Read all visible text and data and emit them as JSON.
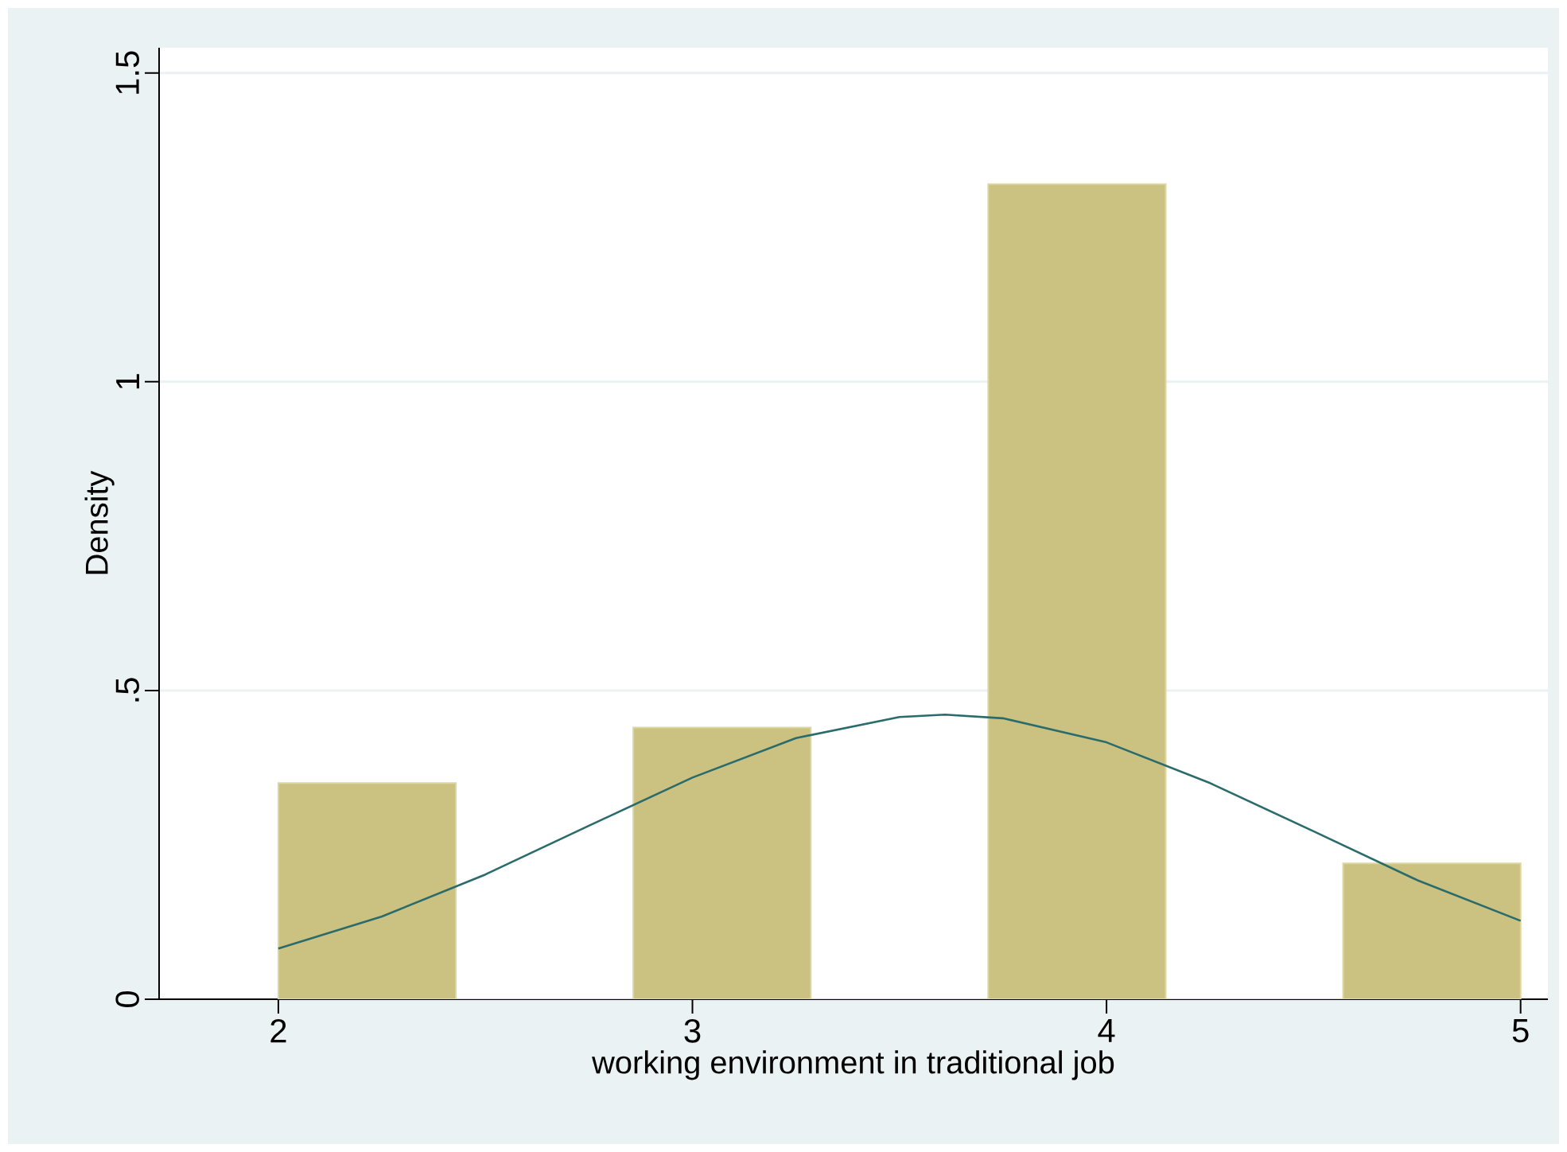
{
  "chart_data": {
    "type": "histogram",
    "xlabel": "working environment in traditional job",
    "ylabel": "Density",
    "bins": [
      2,
      2.4286,
      2.8571,
      3.2857,
      3.7143,
      4.1429,
      4.5714,
      5
    ],
    "values": [
      0.35,
      0,
      0.44,
      0,
      1.32,
      0,
      0.22
    ],
    "color": "#cbc282",
    "series": [
      {
        "type": "line",
        "color": "#2a6b6b",
        "x": [
          2,
          2.25,
          2.5,
          2.75,
          3,
          3.25,
          3.5,
          3.61,
          3.75,
          4,
          4.25,
          4.5,
          4.75,
          5
        ],
        "values": [
          0.082,
          0.134,
          0.202,
          0.281,
          0.359,
          0.423,
          0.457,
          0.461,
          0.455,
          0.416,
          0.35,
          0.272,
          0.193,
          0.127
        ]
      }
    ],
    "xlim": [
      1.712,
      5.066
    ],
    "ylim": [
      0,
      1.541
    ],
    "xticks": [
      2,
      3,
      4,
      5
    ],
    "yticks": [
      0,
      {
        "value": 0.5,
        "label": ".5"
      },
      1,
      1.5
    ],
    "grid": "y"
  }
}
